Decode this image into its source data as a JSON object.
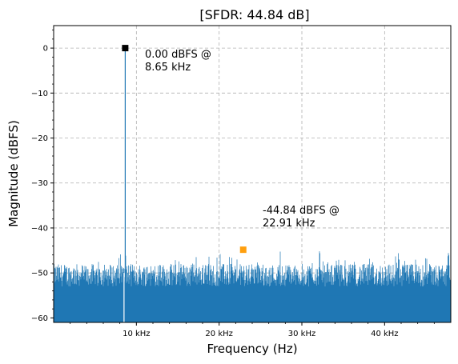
{
  "chart_data": {
    "type": "line",
    "title": "[SFDR: 44.84 dB]",
    "xlabel": "Frequency (Hz)",
    "ylabel": "Magnitude (dBFS)",
    "xlim_khz": [
      0,
      48
    ],
    "ylim": [
      -61,
      5
    ],
    "yticks": [
      0,
      -10,
      -20,
      -30,
      -40,
      -50,
      -60
    ],
    "ytick_labels": [
      "0",
      "−10",
      "−20",
      "−30",
      "−40",
      "−50",
      "−60"
    ],
    "xticks_khz": [
      10,
      20,
      30,
      40
    ],
    "xtick_labels": [
      "10 kHz",
      "20 kHz",
      "30 kHz",
      "40 kHz"
    ],
    "grid": true,
    "series": [
      {
        "color": "#1f77b4",
        "noise_floor_range_dbfs": [
          -61,
          -45
        ]
      }
    ],
    "fundamental": {
      "x_khz": 8.65,
      "y": 0.0,
      "color": "#000000",
      "label_line1": "0.00 dBFS @",
      "label_line2": "8.65 kHz"
    },
    "spur": {
      "x_khz": 22.91,
      "y": -44.84,
      "color": "#ff9f0e",
      "label_line1": "-44.84 dBFS @",
      "label_line2": "22.91 kHz"
    }
  }
}
